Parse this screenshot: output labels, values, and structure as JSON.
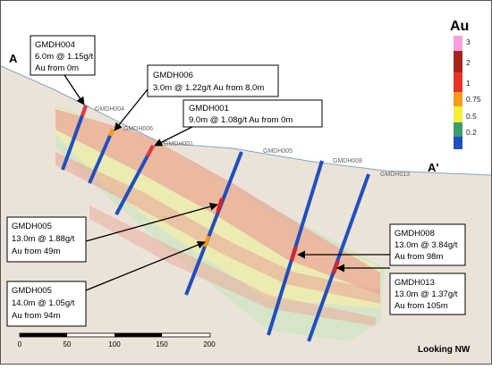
{
  "section": {
    "start_label": "A",
    "end_label": "A'",
    "view": "Looking NW"
  },
  "drillholes": [
    "GMDH004",
    "GMDH006",
    "GMDH001",
    "GMDH005",
    "GMDH008",
    "GMDH013"
  ],
  "callouts": [
    {
      "hole": "GMDH004",
      "lines": [
        "6.0m @ 1.15g/t",
        "Au from 0m"
      ]
    },
    {
      "hole": "GMDH006",
      "lines": [
        "3.0m @ 1.22g/t Au from 8.0m"
      ]
    },
    {
      "hole": "GMDH001",
      "lines": [
        "9.0m @ 1.08g/t Au from 0m"
      ]
    },
    {
      "hole": "GMDH005",
      "lines": [
        "13.0m @ 1.88g/t",
        "Au from 49m"
      ]
    },
    {
      "hole": "GMDH005",
      "lines": [
        "14.0m @ 1.05g/t",
        "Au from 94m"
      ]
    },
    {
      "hole": "GMDH008",
      "lines": [
        "13.0m @ 3.84g/t",
        "Au from 98m"
      ]
    },
    {
      "hole": "GMDH013",
      "lines": [
        "13.0m @ 1.37g/t",
        "Au from 105m"
      ]
    }
  ],
  "legend": {
    "title": "Au",
    "labels": [
      "3",
      "2",
      "1",
      "0.75",
      "0.5",
      "0.2"
    ]
  },
  "scale_bar": {
    "labels": [
      "0",
      "50",
      "100",
      "150",
      "200"
    ]
  }
}
